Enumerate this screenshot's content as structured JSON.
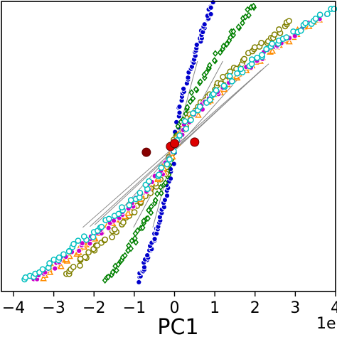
{
  "chart_data": {
    "type": "scatter",
    "title": "",
    "xlabel": "PC1",
    "ylabel": "",
    "x_exponent_label": "1e",
    "xlim": [
      -4.3,
      4.0
    ],
    "ylim": [
      -1.0,
      1.0
    ],
    "x_ticks": [
      -4,
      -3,
      -2,
      -1,
      0,
      1,
      2,
      3,
      4
    ],
    "x_tick_labels": [
      "−4",
      "−3",
      "−2",
      "−1",
      "0",
      "1",
      "2",
      "3",
      "4"
    ],
    "grid": false,
    "legend": "none",
    "series": [
      {
        "color": "#0000cc",
        "marker": "x-filled",
        "x_start": -0.9,
        "x_end": 0.95,
        "y_start": -0.93,
        "y_end": 0.98,
        "spread": 0.18
      },
      {
        "color": "#008000",
        "marker": "diamond",
        "x_start": -1.7,
        "x_end": 2.0,
        "y_start": -0.93,
        "y_end": 0.98,
        "spread": 0.22
      },
      {
        "color": "#808000",
        "marker": "circle",
        "x_start": -2.7,
        "x_end": 2.9,
        "y_start": -0.88,
        "y_end": 0.86,
        "spread": 0.28
      },
      {
        "color": "#ff8c00",
        "marker": "triangle",
        "x_start": -3.3,
        "x_end": 3.6,
        "y_start": -0.9,
        "y_end": 0.88,
        "spread": 0.3
      },
      {
        "color": "#cc00cc",
        "marker": "x-filled",
        "x_start": -3.5,
        "x_end": 3.7,
        "y_start": -0.92,
        "y_end": 0.9,
        "spread": 0.3
      },
      {
        "color": "#00bfbf",
        "marker": "circle",
        "x_start": -3.8,
        "x_end": 3.9,
        "y_start": -0.93,
        "y_end": 0.95,
        "spread": 0.32
      }
    ],
    "centroids": [
      {
        "x": -0.1,
        "y": 0.0,
        "color": "#dd0000"
      },
      {
        "x": 0.0,
        "y": 0.02,
        "color": "#dd0000"
      },
      {
        "x": 0.5,
        "y": 0.03,
        "color": "#dd0000"
      },
      {
        "x": -0.7,
        "y": -0.04,
        "color": "#880000"
      }
    ]
  }
}
